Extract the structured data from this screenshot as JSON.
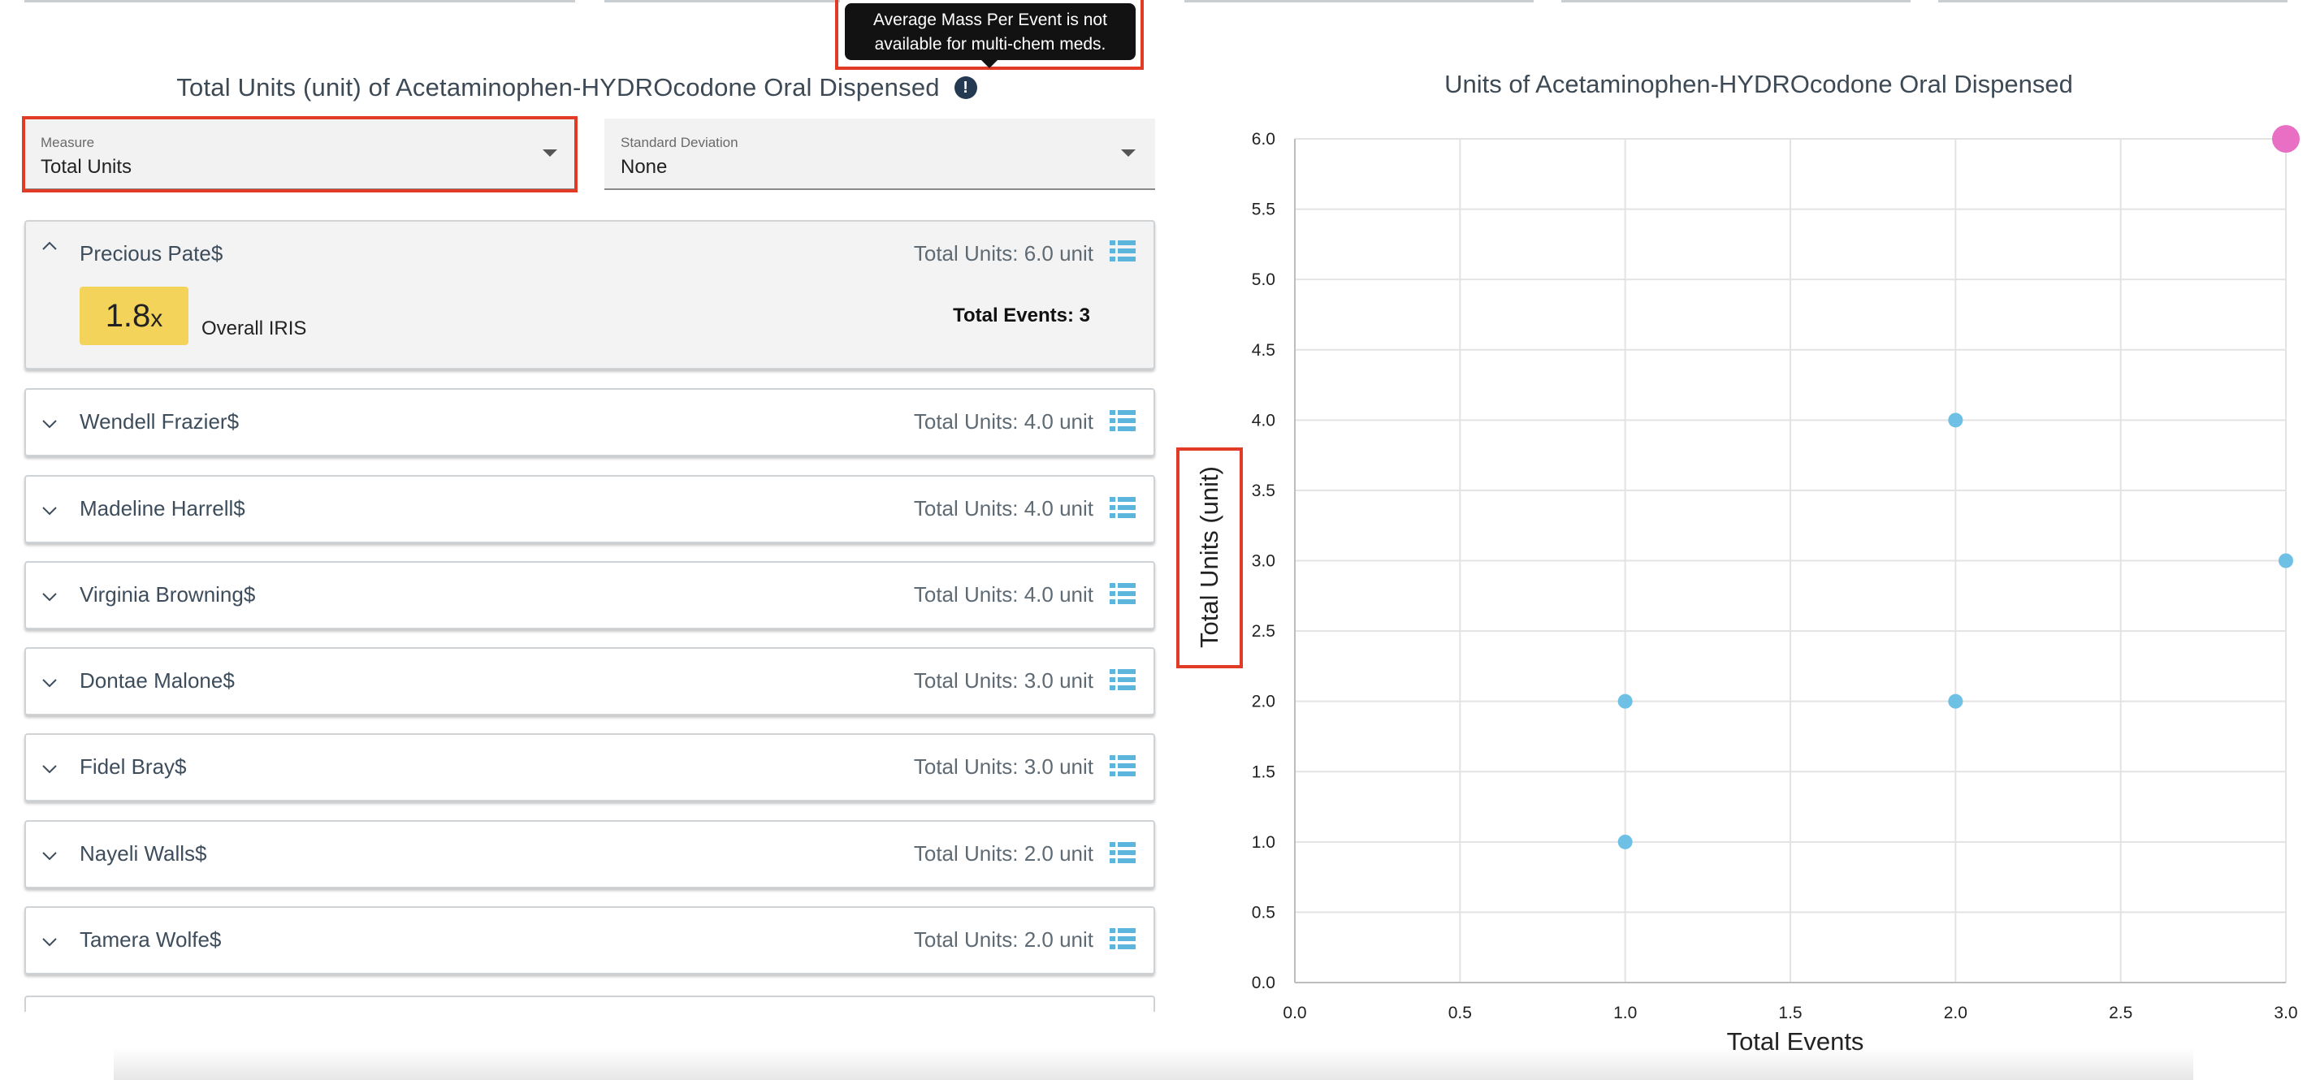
{
  "tooltip": {
    "line1": "Average Mass Per Event is not",
    "line2": "available for multi-chem meds."
  },
  "left_panel": {
    "title": "Total Units (unit) of Acetaminophen-HYDROcodone Oral Dispensed",
    "info_icon": "!",
    "measure": {
      "label": "Measure",
      "value": "Total Units"
    },
    "std_dev": {
      "label": "Standard Deviation",
      "value": "None"
    },
    "expanded_card": {
      "name": "Precious Pate$",
      "units": "Total Units: 6.0 unit",
      "iris_value": "1.8",
      "iris_suffix": "x",
      "iris_label": "Overall IRIS",
      "events": "Total Events: 3"
    },
    "items": [
      {
        "name": "Wendell Frazier$",
        "units": "Total Units: 4.0 unit"
      },
      {
        "name": "Madeline Harrell$",
        "units": "Total Units: 4.0 unit"
      },
      {
        "name": "Virginia Browning$",
        "units": "Total Units: 4.0 unit"
      },
      {
        "name": "Dontae Malone$",
        "units": "Total Units: 3.0 unit"
      },
      {
        "name": "Fidel Bray$",
        "units": "Total Units: 3.0 unit"
      },
      {
        "name": "Nayeli Walls$",
        "units": "Total Units: 2.0 unit"
      },
      {
        "name": "Tamera Wolfe$",
        "units": "Total Units: 2.0 unit"
      }
    ]
  },
  "colors": {
    "accent": "#5bb5dc",
    "point": "#6ec1e4",
    "highlight_point": "#e96fc4",
    "badge": "#f4d35a",
    "annotation": "#e23b25"
  },
  "chart_data": {
    "type": "scatter",
    "title": "Units of Acetaminophen-HYDROcodone Oral Dispensed",
    "xlabel": "Total Events",
    "ylabel": "Total Units (unit)",
    "xlim": [
      0,
      3
    ],
    "ylim": [
      0,
      6
    ],
    "xticks": [
      "0.0",
      "0.5",
      "1.0",
      "1.5",
      "2.0",
      "2.5",
      "3.0"
    ],
    "yticks": [
      "0.0",
      "0.5",
      "1.0",
      "1.5",
      "2.0",
      "2.5",
      "3.0",
      "3.5",
      "4.0",
      "4.5",
      "5.0",
      "5.5",
      "6.0"
    ],
    "grid": true,
    "points": [
      {
        "x": 1,
        "y": 1
      },
      {
        "x": 1,
        "y": 2
      },
      {
        "x": 2,
        "y": 2
      },
      {
        "x": 2,
        "y": 4
      },
      {
        "x": 3,
        "y": 3
      },
      {
        "x": 3,
        "y": 6,
        "highlighted": true
      }
    ]
  }
}
